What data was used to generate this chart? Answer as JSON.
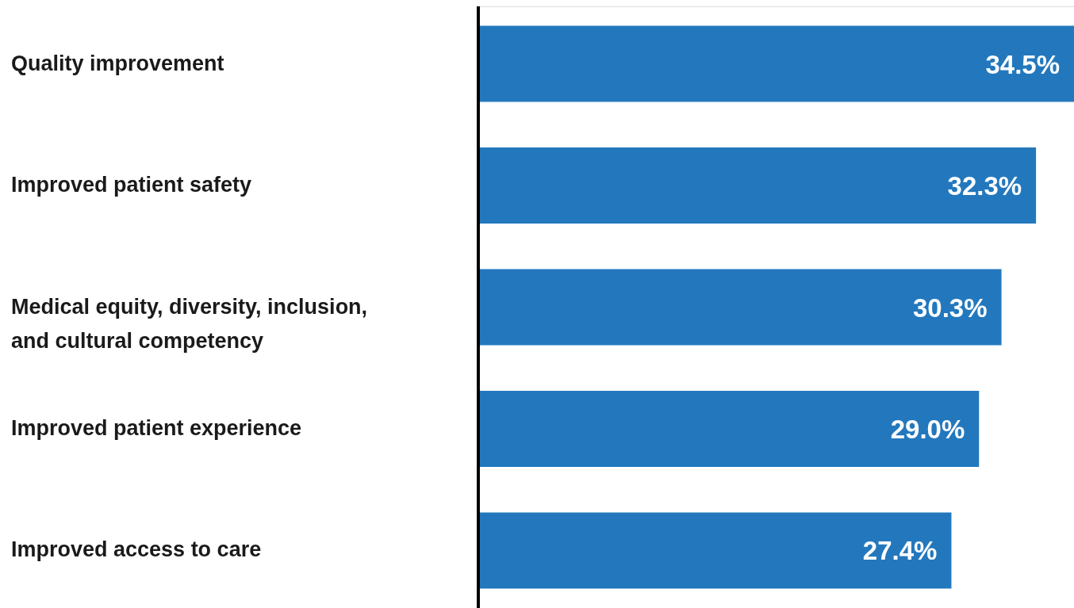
{
  "chart_data": {
    "type": "bar",
    "orientation": "horizontal",
    "categories": [
      "Quality improvement",
      "Improved patient safety",
      "Medical equity, diversity, inclusion, and cultural competency",
      "Improved patient experience",
      "Improved access to care"
    ],
    "values": [
      34.5,
      32.3,
      30.3,
      29.0,
      27.4
    ],
    "value_labels": [
      "34.5%",
      "32.3%",
      "30.3%",
      "29.0%",
      "27.4%"
    ],
    "color": "#2378bd"
  }
}
